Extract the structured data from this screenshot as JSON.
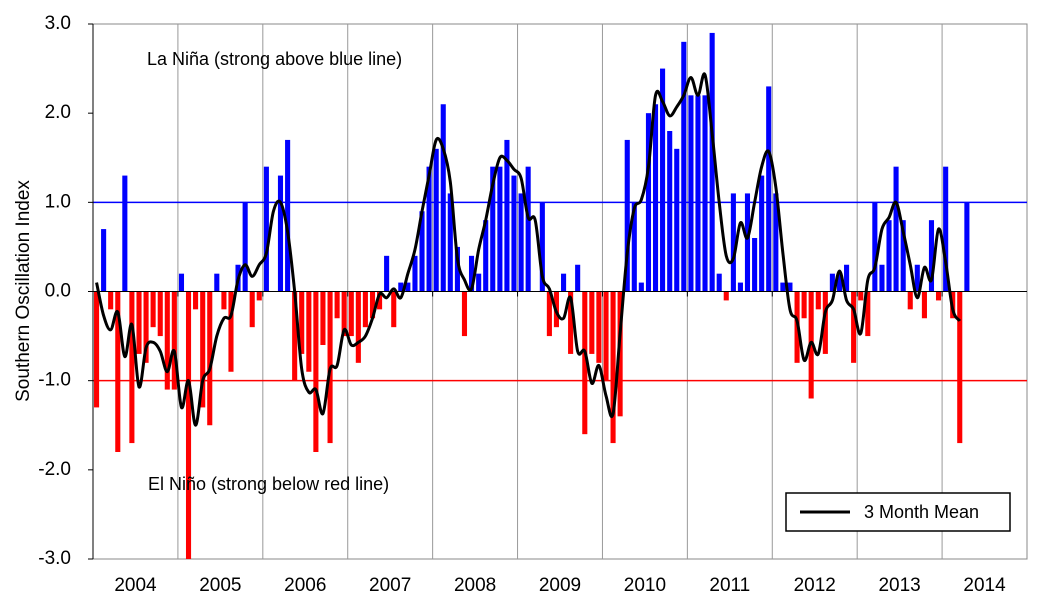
{
  "chart_data": {
    "type": "bar",
    "y_label": "Southern Oscillation Index",
    "annotations": [
      "La Niña (strong above blue line)",
      "El Niño (strong below red line)"
    ],
    "xlim": [
      2004,
      2015
    ],
    "xticks": [
      2004,
      2005,
      2006,
      2007,
      2008,
      2009,
      2010,
      2011,
      2012,
      2013,
      2014
    ],
    "ylim": [
      -3,
      3
    ],
    "yticks": [
      {
        "value": 3,
        "label": "3.0"
      },
      {
        "value": 2,
        "label": "2.0"
      },
      {
        "value": 1,
        "label": "1.0"
      },
      {
        "value": 0,
        "label": "0.0"
      },
      {
        "value": -1,
        "label": "-1.0"
      },
      {
        "value": -2,
        "label": "-2.0"
      },
      {
        "value": -3,
        "label": "-3.0"
      }
    ],
    "grid": true,
    "positive_color": "#0000ff",
    "negative_color": "#ff0000",
    "reference_lines": [
      {
        "value": 1,
        "color": "#0000ff"
      },
      {
        "value": -1,
        "color": "#ff0000"
      }
    ],
    "legend": "lower right",
    "x": [
      2004.042,
      2004.125,
      2004.208,
      2004.292,
      2004.375,
      2004.458,
      2004.542,
      2004.625,
      2004.708,
      2004.792,
      2004.875,
      2004.958,
      2005.042,
      2005.125,
      2005.208,
      2005.292,
      2005.375,
      2005.458,
      2005.542,
      2005.625,
      2005.708,
      2005.792,
      2005.875,
      2005.958,
      2006.042,
      2006.125,
      2006.208,
      2006.292,
      2006.375,
      2006.458,
      2006.542,
      2006.625,
      2006.708,
      2006.792,
      2006.875,
      2006.958,
      2007.042,
      2007.125,
      2007.208,
      2007.292,
      2007.375,
      2007.458,
      2007.542,
      2007.625,
      2007.708,
      2007.792,
      2007.875,
      2007.958,
      2008.042,
      2008.125,
      2008.208,
      2008.292,
      2008.375,
      2008.458,
      2008.542,
      2008.625,
      2008.708,
      2008.792,
      2008.875,
      2008.958,
      2009.042,
      2009.125,
      2009.208,
      2009.292,
      2009.375,
      2009.458,
      2009.542,
      2009.625,
      2009.708,
      2009.792,
      2009.875,
      2009.958,
      2010.042,
      2010.125,
      2010.208,
      2010.292,
      2010.375,
      2010.458,
      2010.542,
      2010.625,
      2010.708,
      2010.792,
      2010.875,
      2010.958,
      2011.042,
      2011.125,
      2011.208,
      2011.292,
      2011.375,
      2011.458,
      2011.542,
      2011.625,
      2011.708,
      2011.792,
      2011.875,
      2011.958,
      2012.042,
      2012.125,
      2012.208,
      2012.292,
      2012.375,
      2012.458,
      2012.542,
      2012.625,
      2012.708,
      2012.792,
      2012.875,
      2012.958,
      2013.042,
      2013.125,
      2013.208,
      2013.292,
      2013.375,
      2013.458,
      2013.542,
      2013.625,
      2013.708,
      2013.792,
      2013.875,
      2013.958,
      2014.042,
      2014.125,
      2014.208,
      2014.292
    ],
    "values": [
      -1.3,
      0.7,
      -0.2,
      -1.8,
      1.3,
      -1.7,
      -0.7,
      -0.8,
      -0.4,
      -0.5,
      -1.1,
      -1.1,
      0.2,
      -3.0,
      -0.2,
      -1.3,
      -1.5,
      0.2,
      -0.2,
      -0.9,
      0.3,
      1.0,
      -0.4,
      -0.1,
      1.4,
      0.0,
      1.3,
      1.7,
      -1.0,
      -0.7,
      -0.9,
      -1.8,
      -0.6,
      -1.7,
      -0.3,
      -0.5,
      -0.5,
      -0.8,
      -0.4,
      -0.3,
      -0.2,
      0.4,
      -0.4,
      0.1,
      0.1,
      0.4,
      0.9,
      1.4,
      1.6,
      2.1,
      1.1,
      0.5,
      -0.5,
      0.4,
      0.2,
      0.8,
      1.4,
      1.4,
      1.7,
      1.3,
      1.1,
      1.4,
      0.0,
      1.0,
      -0.5,
      -0.4,
      0.2,
      -0.7,
      0.3,
      -1.6,
      -0.7,
      -0.8,
      -1.0,
      -1.7,
      -1.4,
      1.7,
      1.0,
      0.1,
      2.0,
      2.1,
      2.5,
      1.8,
      1.6,
      2.8,
      2.2,
      2.2,
      2.2,
      2.9,
      0.2,
      -0.1,
      1.1,
      0.1,
      1.1,
      0.6,
      1.3,
      2.3,
      1.1,
      0.1,
      0.1,
      -0.8,
      -0.3,
      -1.2,
      -0.2,
      -0.7,
      0.2,
      0.2,
      0.3,
      -0.8,
      -0.1,
      -0.5,
      1.0,
      0.3,
      0.8,
      1.4,
      0.8,
      -0.2,
      0.3,
      -0.3,
      0.8,
      -0.1,
      1.4,
      -0.3,
      -1.7,
      1.0
    ],
    "lines": [
      {
        "name": "3 Month Mean",
        "color": "#000000",
        "values": [
          0.1,
          -0.27,
          -0.43,
          -0.23,
          -0.73,
          -0.37,
          -1.07,
          -0.63,
          -0.57,
          -0.67,
          -0.9,
          -0.67,
          -1.3,
          -1.0,
          -1.5,
          -1.0,
          -0.87,
          -0.5,
          -0.3,
          -0.27,
          0.13,
          0.3,
          0.17,
          0.3,
          0.43,
          0.9,
          1.0,
          0.67,
          0,
          -0.87,
          -1.13,
          -1.1,
          -1.37,
          -0.87,
          -0.83,
          -0.43,
          -0.6,
          -0.57,
          -0.5,
          -0.3,
          -0.03,
          -0.07,
          0.03,
          -0.07,
          0.2,
          0.47,
          0.9,
          1.3,
          1.7,
          1.6,
          1.23,
          0.37,
          0.13,
          0.03,
          0.47,
          0.8,
          1.2,
          1.5,
          1.47,
          1.37,
          1.27,
          0.83,
          0.8,
          0.17,
          0.03,
          -0.23,
          -0.3,
          -0.07,
          -0.67,
          -0.67,
          -1.03,
          -0.83,
          -1.17,
          -1.37,
          -0.47,
          0.43,
          0.93,
          1.03,
          1.4,
          2.2,
          2.13,
          1.97,
          2.07,
          2.2,
          2.4,
          2.2,
          2.43,
          1.77,
          1.0,
          0.4,
          0.37,
          0.77,
          0.6,
          1.0,
          1.4,
          1.57,
          1.17,
          0.43,
          -0.2,
          -0.33,
          -0.77,
          -0.57,
          -0.7,
          -0.23,
          -0.1,
          0.23,
          -0.1,
          -0.2,
          -0.47,
          0.13,
          0.27,
          0.7,
          0.83,
          1.0,
          0.67,
          0.3,
          -0.07,
          0.27,
          0.13,
          0.7,
          0.33,
          -0.2,
          -0.33,
          null
        ]
      }
    ]
  }
}
